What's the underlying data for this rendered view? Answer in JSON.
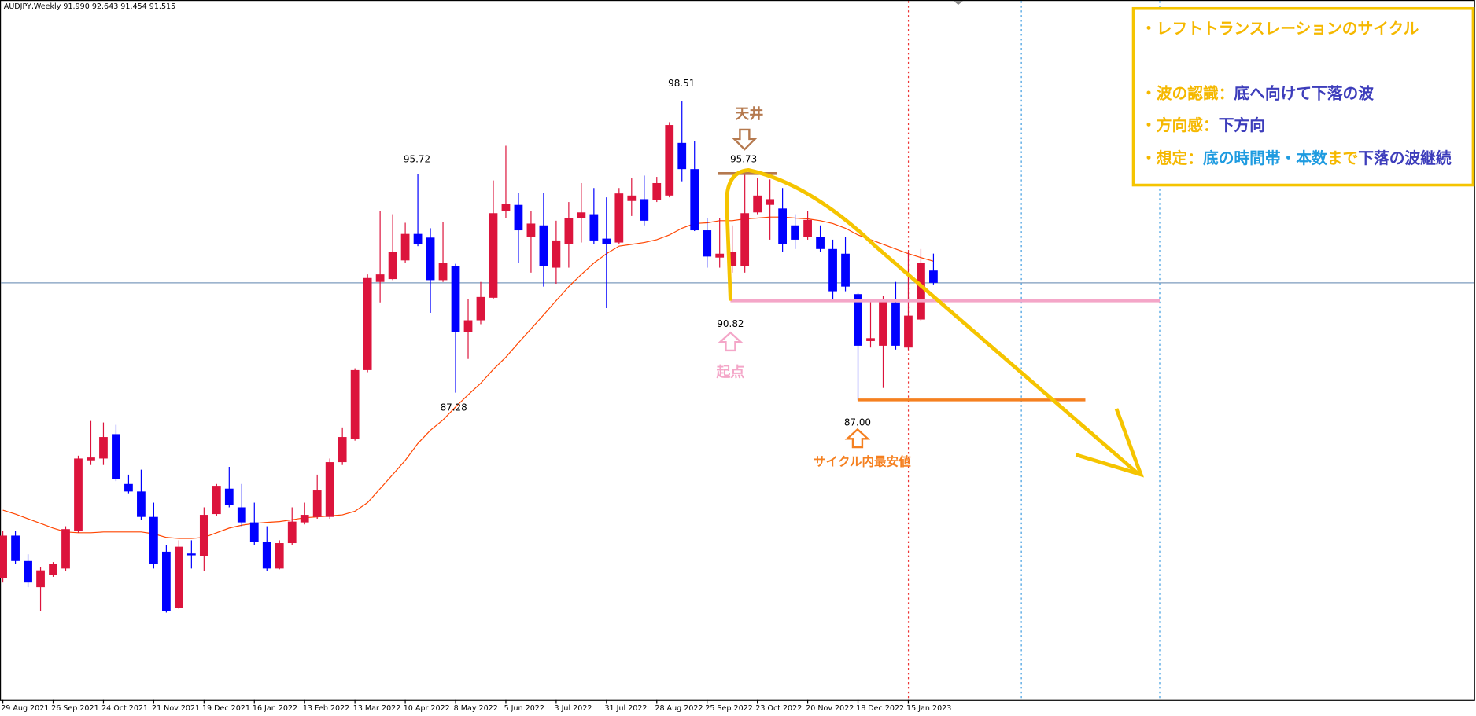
{
  "chart_data": {
    "type": "candlestick",
    "title": "AUDJPY,Weekly  91.990 92.643 91.454 91.515",
    "categories": [
      "29 Aug 2021",
      null,
      null,
      null,
      "26 Sep 2021",
      null,
      null,
      null,
      "24 Oct 2021",
      null,
      null,
      null,
      "21 Nov 2021",
      null,
      null,
      null,
      "19 Dec 2021",
      null,
      null,
      null,
      "16 Jan 2022",
      null,
      null,
      null,
      "13 Feb 2022",
      null,
      null,
      null,
      "13 Mar 2022",
      null,
      null,
      null,
      "10 Apr 2022",
      null,
      null,
      null,
      "8 May 2022",
      null,
      null,
      null,
      "5 Jun 2022",
      null,
      null,
      null,
      "3 Jul 2022",
      null,
      null,
      null,
      "31 Jul 2022",
      null,
      null,
      null,
      "28 Aug 2022",
      null,
      null,
      null,
      "25 Sep 2022",
      null,
      null,
      null,
      "23 Oct 2022",
      null,
      null,
      null,
      "20 Nov 2022",
      null,
      null,
      null,
      "18 Dec 2022",
      null,
      null,
      null,
      "15 Jan 2023",
      null,
      null
    ],
    "open": [
      80.14,
      81.77,
      80.79,
      79.78,
      80.25,
      80.5,
      81.95,
      84.67,
      84.74,
      85.68,
      83.76,
      83.47,
      82.49,
      81.15,
      78.98,
      81.08,
      80.97,
      82.6,
      83.58,
      82.86,
      82.28,
      81.52,
      80.5,
      81.48,
      82.28,
      82.49,
      82.49,
      84.6,
      85.5,
      88.15,
      91.55,
      91.66,
      92.38,
      93.4,
      93.26,
      91.62,
      92.17,
      89.63,
      90.07,
      90.94,
      94.27,
      94.52,
      93.29,
      93.73,
      92.1,
      93.0,
      94.02,
      94.16,
      93.22,
      93.07,
      94.67,
      94.74,
      94.7,
      94.88,
      96.91,
      95.9,
      93.54,
      92.49,
      92.17,
      92.17,
      94.23,
      94.52,
      94.38,
      93.73,
      93.29,
      93.29,
      92.82,
      92.64,
      91.08,
      89.27,
      89.09,
      90.76,
      89.02,
      90.1,
      91.99
    ],
    "high": [
      81.95,
      81.95,
      81.05,
      80.57,
      80.75,
      82.13,
      84.85,
      86.19,
      86.13,
      86.04,
      84.12,
      84.31,
      83.04,
      81.41,
      81.59,
      81.59,
      82.86,
      83.76,
      84.42,
      83.76,
      83.04,
      82.13,
      81.59,
      82.86,
      83.04,
      84.12,
      84.74,
      85.94,
      88.22,
      91.84,
      94.27,
      94.16,
      93.83,
      95.72,
      93.62,
      93.87,
      92.25,
      90.9,
      91.55,
      95.46,
      96.8,
      94.99,
      94.27,
      94.99,
      93.91,
      94.63,
      95.36,
      95.17,
      94.81,
      95.17,
      95.54,
      95.65,
      95.6,
      97.71,
      98.51,
      96.99,
      94.02,
      94.02,
      93.73,
      95.73,
      95.54,
      95.5,
      95.17,
      94.16,
      94.27,
      93.73,
      93.18,
      93.29,
      91.12,
      90.83,
      91.01,
      91.55,
      92.71,
      92.82,
      92.643
    ],
    "low": [
      79.96,
      80.68,
      79.78,
      78.87,
      80.18,
      80.39,
      81.88,
      84.49,
      84.49,
      83.87,
      83.4,
      82.39,
      80.5,
      78.8,
      78.94,
      80.5,
      80.39,
      82.53,
      82.86,
      82.13,
      81.41,
      80.39,
      80.47,
      81.41,
      82.2,
      82.42,
      82.42,
      84.49,
      85.43,
      88.07,
      90.76,
      91.62,
      92.28,
      92.93,
      90.36,
      91.55,
      87.28,
      88.58,
      89.92,
      90.9,
      94.02,
      92.28,
      91.91,
      91.37,
      91.48,
      92.1,
      93.07,
      93.0,
      90.54,
      93.0,
      94.09,
      93.73,
      94.63,
      94.81,
      95.43,
      93.51,
      92.1,
      92.1,
      91.91,
      91.91,
      94.16,
      93.18,
      92.71,
      92.82,
      93.18,
      92.71,
      90.9,
      91.19,
      87.0,
      89.02,
      87.46,
      88.94,
      88.94,
      90.03,
      91.454
    ],
    "close": [
      81.77,
      80.79,
      79.96,
      80.43,
      80.68,
      82.02,
      84.74,
      84.78,
      85.57,
      83.94,
      83.47,
      82.49,
      80.68,
      78.87,
      81.34,
      81.01,
      82.57,
      83.69,
      82.96,
      82.28,
      81.52,
      80.5,
      81.48,
      82.31,
      82.57,
      83.51,
      84.6,
      85.57,
      88.15,
      91.7,
      91.84,
      92.71,
      93.4,
      93.0,
      91.62,
      92.28,
      89.63,
      90.07,
      90.97,
      94.2,
      94.56,
      93.54,
      93.8,
      92.17,
      93.15,
      94.02,
      94.23,
      93.15,
      93.0,
      94.96,
      94.88,
      93.91,
      95.36,
      97.6,
      95.9,
      93.54,
      92.53,
      92.64,
      92.71,
      94.2,
      94.88,
      94.74,
      93.0,
      93.18,
      93.94,
      92.82,
      91.19,
      91.37,
      89.09,
      89.38,
      90.83,
      89.09,
      90.25,
      92.28,
      91.515
    ],
    "up_color": "#dc143c",
    "down_color": "#0000ff",
    "ma": {
      "color": "#ff4500",
      "values": [
        82.75,
        82.6,
        82.42,
        82.24,
        82.06,
        81.91,
        81.88,
        81.88,
        81.91,
        81.91,
        81.91,
        81.91,
        81.84,
        81.7,
        81.66,
        81.66,
        81.7,
        81.88,
        82.06,
        82.17,
        82.24,
        82.28,
        82.31,
        82.38,
        82.46,
        82.49,
        82.53,
        82.57,
        82.71,
        83.04,
        83.58,
        84.12,
        84.67,
        85.32,
        85.83,
        86.23,
        86.73,
        87.2,
        87.64,
        88.18,
        88.65,
        89.2,
        89.74,
        90.28,
        90.83,
        91.37,
        91.84,
        92.28,
        92.64,
        92.93,
        93.0,
        93.07,
        93.18,
        93.36,
        93.62,
        93.8,
        93.83,
        93.91,
        93.91,
        93.98,
        94.01,
        94.05,
        94.05,
        94.01,
        93.98,
        93.91,
        93.8,
        93.62,
        93.36,
        93.18,
        93.0,
        92.82,
        92.64,
        92.49,
        92.35
      ]
    },
    "ylim": [
      75.43,
      102.42
    ],
    "price_line_color": "#7d9bbd",
    "price_labels": [
      {
        "value": 98.51,
        "label": "98.51"
      },
      {
        "value": 95.72,
        "label": "95.72"
      },
      {
        "value": 87.28,
        "label": "87.28"
      }
    ],
    "markers": [
      {
        "text": "天井",
        "value": 95.73,
        "label": "95.73",
        "color": "#b5794e"
      },
      {
        "text": "起点",
        "value": 90.82,
        "label": "90.82",
        "color": "#f4a6c8"
      },
      {
        "text": "サイクル内最安値",
        "value": 87.0,
        "label": "87.00",
        "color": "#f58020"
      }
    ],
    "info_box": {
      "border_color": "#f5c400",
      "lines": [
        [
          {
            "text": "・レフトトランスレーションのサイクル",
            "color": "#f5b800"
          }
        ],
        [
          {
            "text": "・波の認識：",
            "color": "#f5b800"
          },
          {
            "text": "底へ向けて下落の波",
            "color": "#3d3dbb"
          }
        ],
        [
          {
            "text": "・方向感：",
            "color": "#f5b800"
          },
          {
            "text": "下方向",
            "color": "#3d3dbb"
          }
        ],
        [
          {
            "text": "・想定：",
            "color": "#f5b800"
          },
          {
            "text": "底の時間帯・本数",
            "color": "#1e9be0"
          },
          {
            "text": "まで",
            "color": "#f5b800"
          },
          {
            "text": "下落の波継続",
            "color": "#3d3dbb"
          }
        ]
      ]
    }
  }
}
